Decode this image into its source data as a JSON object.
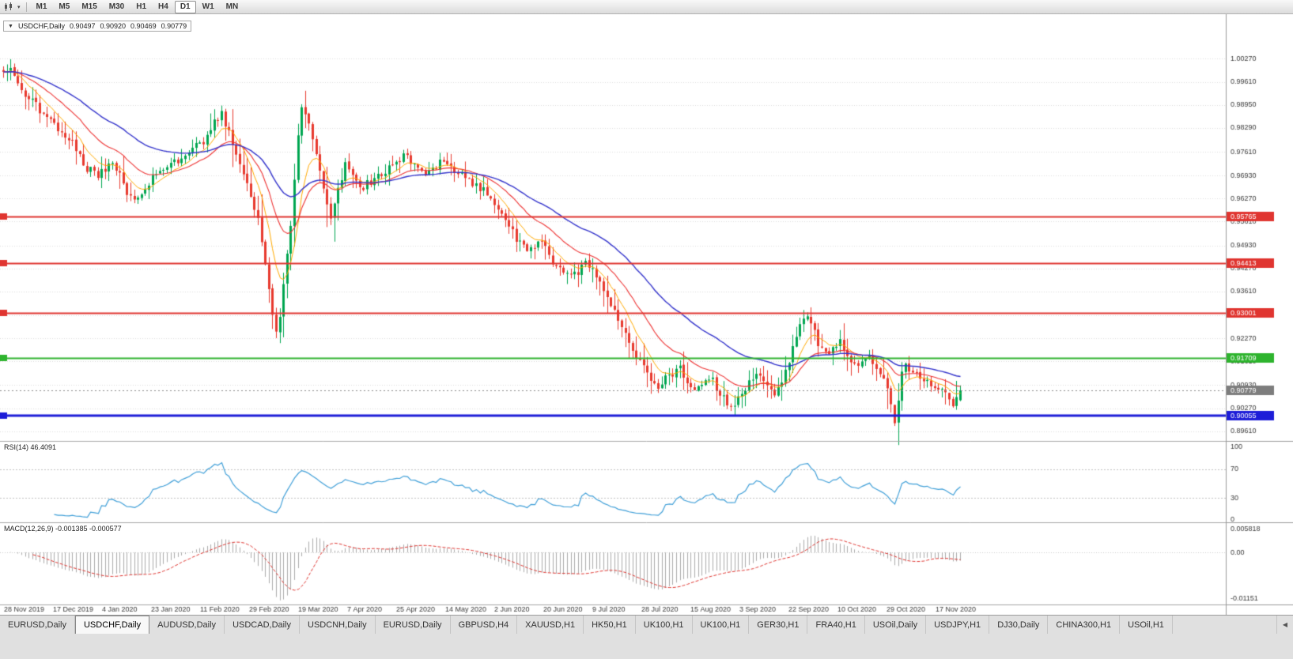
{
  "icons": {
    "dropdown": "▼",
    "toolbar_dropdown": "▾",
    "tabs_scroll_left": "◀"
  },
  "toolbar": {
    "timeframes": [
      "M1",
      "M5",
      "M15",
      "M30",
      "H1",
      "H4",
      "D1",
      "W1",
      "MN"
    ],
    "active_timeframe": "D1"
  },
  "chart": {
    "symbol_label": "USDCHF,Daily",
    "open": "0.90497",
    "high": "0.90920",
    "low": "0.90469",
    "close": "0.90779",
    "price_axis_labels": [
      "1.00270",
      "0.99610",
      "0.98950",
      "0.98290",
      "0.97610",
      "0.96930",
      "0.96270",
      "0.95610",
      "0.94930",
      "0.94270",
      "0.93610",
      "0.92930",
      "0.92270",
      "0.91610",
      "0.90930",
      "0.90270",
      "0.89610"
    ],
    "date_labels": [
      "28 Nov 2019",
      "17 Dec 2019",
      "4 Jan 2020",
      "23 Jan 2020",
      "11 Feb 2020",
      "29 Feb 2020",
      "19 Mar 2020",
      "7 Apr 2020",
      "25 Apr 2020",
      "14 May 2020",
      "2 Jun 2020",
      "20 Jun 2020",
      "9 Jul 2020",
      "28 Jul 2020",
      "15 Aug 2020",
      "3 Sep 2020",
      "22 Sep 2020",
      "10 Oct 2020",
      "29 Oct 2020",
      "17 Nov 2020"
    ],
    "levels": [
      {
        "price": 0.95765,
        "label": "0.95765",
        "color": "#e03530",
        "width": 2
      },
      {
        "price": 0.94413,
        "label": "0.94413",
        "color": "#e03530",
        "width": 2
      },
      {
        "price": 0.93001,
        "label": "0.93001",
        "color": "#e03530",
        "width": 2
      },
      {
        "price": 0.91709,
        "label": "0.91709",
        "color": "#2eb42e",
        "width": 2
      },
      {
        "price": 0.90055,
        "label": "0.90055",
        "color": "#1d1dd8",
        "width": 3
      }
    ],
    "current_price": {
      "value": 0.90779,
      "label": "0.90779",
      "tag_color": "#7d7d7d"
    },
    "colors": {
      "bull": "#00a651",
      "bear": "#e8392e",
      "ma_fast": "#ffaa00",
      "ma_mid": "#ee3333",
      "ma_slow": "#3434cc",
      "grid": "#dddddd"
    }
  },
  "rsi": {
    "label": "RSI(14) 46.4091",
    "value": 46.4091,
    "period": 14,
    "axis_labels": [
      "100",
      "70",
      "30",
      "0"
    ],
    "axis_values": [
      100,
      70,
      30,
      0
    ],
    "guide_levels": [
      70,
      30
    ],
    "line_color": "#3f9fd8"
  },
  "macd": {
    "label": "MACD(12,26,9) -0.001385 -0.000577",
    "main_value": -0.001385,
    "signal_value": -0.000577,
    "axis_labels": [
      "0.005818",
      "0.00",
      "-0.01151"
    ],
    "axis_values": [
      0.005818,
      0,
      -0.01151
    ],
    "histogram_color": "#ababab",
    "signal_color": "#e03530"
  },
  "chart_data": {
    "type": "candlestick",
    "symbol": "USDCHF",
    "timeframe": "Daily",
    "candle_count": 264,
    "y_range": [
      0.894,
      1.0105
    ],
    "last_candle": {
      "o": 0.90497,
      "h": 0.9092,
      "l": 0.90469,
      "c": 0.90779
    },
    "close_anchors": [
      [
        0,
        0.999
      ],
      [
        2,
        1.0
      ],
      [
        4,
        0.995
      ],
      [
        7,
        0.9915
      ],
      [
        10,
        0.988
      ],
      [
        13,
        0.9845
      ],
      [
        16,
        0.982
      ],
      [
        19,
        0.979
      ],
      [
        21,
        0.975
      ],
      [
        23,
        0.9715
      ],
      [
        26,
        0.969
      ],
      [
        28,
        0.9715
      ],
      [
        30,
        0.973
      ],
      [
        32,
        0.97
      ],
      [
        34,
        0.9645
      ],
      [
        36,
        0.9625
      ],
      [
        38,
        0.965
      ],
      [
        40,
        0.9675
      ],
      [
        43,
        0.97
      ],
      [
        46,
        0.9725
      ],
      [
        49,
        0.9745
      ],
      [
        52,
        0.9765
      ],
      [
        54,
        0.9785
      ],
      [
        56,
        0.98
      ],
      [
        58,
        0.985
      ],
      [
        60,
        0.987
      ],
      [
        62,
        0.982
      ],
      [
        64,
        0.976
      ],
      [
        66,
        0.97
      ],
      [
        68,
        0.964
      ],
      [
        70,
        0.956
      ],
      [
        72,
        0.943
      ],
      [
        74,
        0.929
      ],
      [
        75,
        0.9235
      ],
      [
        76,
        0.93
      ],
      [
        77,
        0.939
      ],
      [
        78,
        0.948
      ],
      [
        79,
        0.956
      ],
      [
        80,
        0.968
      ],
      [
        81,
        0.98
      ],
      [
        82,
        0.988
      ],
      [
        83,
        0.987
      ],
      [
        84,
        0.984
      ],
      [
        85,
        0.98
      ],
      [
        86,
        0.9755
      ],
      [
        87,
        0.97
      ],
      [
        88,
        0.9645
      ],
      [
        90,
        0.9575
      ],
      [
        92,
        0.965
      ],
      [
        94,
        0.972
      ],
      [
        96,
        0.969
      ],
      [
        98,
        0.9655
      ],
      [
        100,
        0.967
      ],
      [
        102,
        0.9685
      ],
      [
        104,
        0.9695
      ],
      [
        106,
        0.971
      ],
      [
        108,
        0.973
      ],
      [
        110,
        0.975
      ],
      [
        112,
        0.9735
      ],
      [
        114,
        0.971
      ],
      [
        116,
        0.97
      ],
      [
        118,
        0.9715
      ],
      [
        120,
        0.973
      ],
      [
        122,
        0.9728
      ],
      [
        124,
        0.971
      ],
      [
        126,
        0.9698
      ],
      [
        128,
        0.968
      ],
      [
        130,
        0.9665
      ],
      [
        132,
        0.9655
      ],
      [
        134,
        0.963
      ],
      [
        136,
        0.96
      ],
      [
        138,
        0.9575
      ],
      [
        140,
        0.953
      ],
      [
        142,
        0.9495
      ],
      [
        144,
        0.9475
      ],
      [
        146,
        0.9495
      ],
      [
        148,
        0.951
      ],
      [
        150,
        0.9455
      ],
      [
        152,
        0.9435
      ],
      [
        154,
        0.942
      ],
      [
        156,
        0.94
      ],
      [
        158,
        0.942
      ],
      [
        160,
        0.945
      ],
      [
        162,
        0.943
      ],
      [
        164,
        0.9385
      ],
      [
        166,
        0.934
      ],
      [
        168,
        0.93
      ],
      [
        170,
        0.926
      ],
      [
        172,
        0.9215
      ],
      [
        174,
        0.9175
      ],
      [
        176,
        0.914
      ],
      [
        178,
        0.91
      ],
      [
        180,
        0.9075
      ],
      [
        182,
        0.911
      ],
      [
        184,
        0.9125
      ],
      [
        186,
        0.914
      ],
      [
        188,
        0.9095
      ],
      [
        190,
        0.907
      ],
      [
        192,
        0.9095
      ],
      [
        194,
        0.912
      ],
      [
        196,
        0.9085
      ],
      [
        198,
        0.906
      ],
      [
        200,
        0.9025
      ],
      [
        202,
        0.906
      ],
      [
        204,
        0.9085
      ],
      [
        206,
        0.911
      ],
      [
        208,
        0.9125
      ],
      [
        210,
        0.9095
      ],
      [
        212,
        0.907
      ],
      [
        214,
        0.9095
      ],
      [
        216,
        0.916
      ],
      [
        218,
        0.924
      ],
      [
        220,
        0.9295
      ],
      [
        221,
        0.93
      ],
      [
        222,
        0.927
      ],
      [
        224,
        0.9215
      ],
      [
        226,
        0.918
      ],
      [
        228,
        0.92
      ],
      [
        230,
        0.922
      ],
      [
        232,
        0.9175
      ],
      [
        234,
        0.9145
      ],
      [
        236,
        0.916
      ],
      [
        238,
        0.917
      ],
      [
        240,
        0.9135
      ],
      [
        242,
        0.9105
      ],
      [
        244,
        0.9045
      ],
      [
        245,
        0.8995
      ],
      [
        246,
        0.904
      ],
      [
        247,
        0.9135
      ],
      [
        248,
        0.9155
      ],
      [
        249,
        0.9125
      ],
      [
        250,
        0.914
      ],
      [
        251,
        0.913
      ],
      [
        252,
        0.9115
      ],
      [
        254,
        0.91
      ],
      [
        256,
        0.9095
      ],
      [
        258,
        0.9075
      ],
      [
        260,
        0.905
      ],
      [
        261,
        0.904
      ],
      [
        262,
        0.9055
      ],
      [
        263,
        0.90779
      ]
    ]
  },
  "tabs": {
    "items": [
      {
        "label": "EURUSD,Daily",
        "active": false
      },
      {
        "label": "USDCHF,Daily",
        "active": true
      },
      {
        "label": "AUDUSD,Daily",
        "active": false
      },
      {
        "label": "USDCAD,Daily",
        "active": false
      },
      {
        "label": "USDCNH,Daily",
        "active": false
      },
      {
        "label": "EURUSD,Daily",
        "active": false
      },
      {
        "label": "GBPUSD,H4",
        "active": false
      },
      {
        "label": "XAUUSD,H1",
        "active": false
      },
      {
        "label": "HK50,H1",
        "active": false
      },
      {
        "label": "UK100,H1",
        "active": false
      },
      {
        "label": "UK100,H1",
        "active": false
      },
      {
        "label": "GER30,H1",
        "active": false
      },
      {
        "label": "FRA40,H1",
        "active": false
      },
      {
        "label": "USOil,Daily",
        "active": false
      },
      {
        "label": "USDJPY,H1",
        "active": false
      },
      {
        "label": "DJ30,Daily",
        "active": false
      },
      {
        "label": "CHINA300,H1",
        "active": false
      },
      {
        "label": "USOil,H1",
        "active": false
      }
    ]
  }
}
